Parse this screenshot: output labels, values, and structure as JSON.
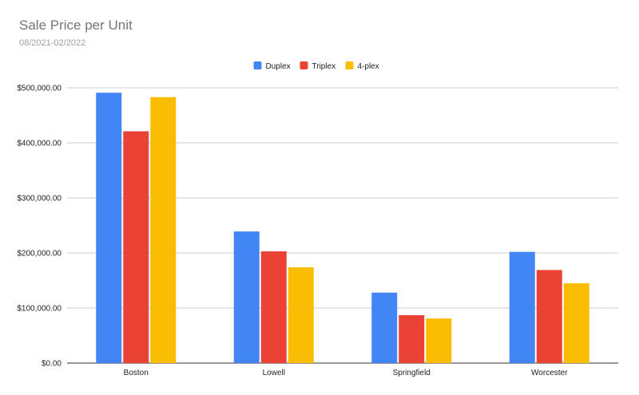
{
  "chart_data": {
    "type": "bar",
    "title": "Sale Price per Unit",
    "subtitle": "08/2021-02/2022",
    "categories": [
      "Boston",
      "Lowell",
      "Springfield",
      "Worcester"
    ],
    "series": [
      {
        "name": "Duplex",
        "color": "#4285f4",
        "values": [
          491000,
          239000,
          128000,
          202000
        ]
      },
      {
        "name": "Triplex",
        "color": "#ea4335",
        "values": [
          421000,
          203000,
          87000,
          169000
        ]
      },
      {
        "name": "4-plex",
        "color": "#fbbc04",
        "values": [
          483000,
          174000,
          81000,
          145000
        ]
      }
    ],
    "ylim": [
      0,
      500000
    ],
    "yticks": [
      {
        "value": 0,
        "label": "$0.00"
      },
      {
        "value": 100000,
        "label": "$100,000.00"
      },
      {
        "value": 200000,
        "label": "$200,000.00"
      },
      {
        "value": 300000,
        "label": "$300,000.00"
      },
      {
        "value": 400000,
        "label": "$400,000.00"
      },
      {
        "value": 500000,
        "label": "$500,000.00"
      }
    ],
    "grid": true,
    "legend_position": "top"
  }
}
